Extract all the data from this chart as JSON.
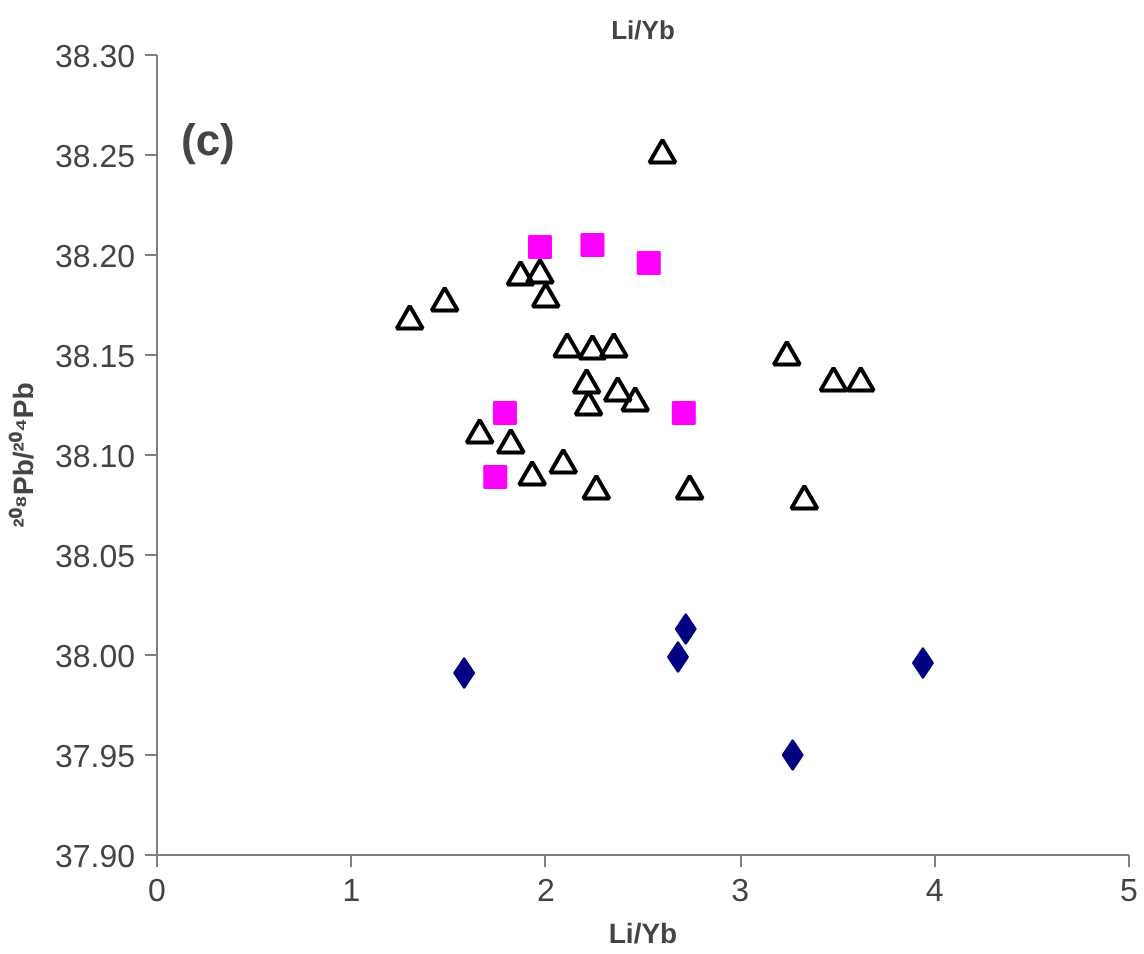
{
  "chart_data": {
    "type": "scatter",
    "title": "Li/Yb",
    "xlabel": "Li/Yb",
    "ylabel": "²⁰⁸Pb/²⁰⁴Pb",
    "annotations": [
      "(c)"
    ],
    "xlim": [
      0,
      5
    ],
    "xticks": [
      0,
      1,
      2,
      3,
      4,
      5
    ],
    "ylim": [
      37.9,
      38.3
    ],
    "yticks": [
      {
        "value": 37.9,
        "label": "37.90"
      },
      {
        "value": 37.95,
        "label": "37.95"
      },
      {
        "value": 38.0,
        "label": "38.00"
      },
      {
        "value": 38.05,
        "label": "38.05"
      },
      {
        "value": 38.1,
        "label": "38.10"
      },
      {
        "value": 38.15,
        "label": "38.15"
      },
      {
        "value": 38.2,
        "label": "38.20"
      },
      {
        "value": 38.25,
        "label": "38.25"
      },
      {
        "value": 38.3,
        "label": "38.30"
      }
    ],
    "grid": false,
    "series": [
      {
        "color": "#000000",
        "marker": "triangle",
        "x": [
          1.3,
          1.48,
          1.87,
          1.97,
          2.0,
          2.11,
          2.24,
          2.35,
          2.21,
          2.37,
          2.46,
          2.22,
          2.6,
          3.24,
          3.48,
          3.62,
          1.66,
          1.82,
          1.93,
          2.09,
          2.26,
          2.74,
          3.33
        ],
        "values": [
          38.167,
          38.176,
          38.189,
          38.19,
          38.178,
          38.153,
          38.152,
          38.153,
          38.135,
          38.131,
          38.126,
          38.124,
          38.25,
          38.149,
          38.136,
          38.136,
          38.11,
          38.105,
          38.089,
          38.095,
          38.082,
          38.082,
          38.077
        ]
      },
      {
        "color": "#ff00ff",
        "marker": "square",
        "x": [
          1.97,
          2.24,
          2.53,
          1.79,
          2.71,
          1.74
        ],
        "values": [
          38.204,
          38.205,
          38.196,
          38.121,
          38.121,
          38.089
        ]
      },
      {
        "color": "#000080",
        "marker": "diamond",
        "x": [
          1.58,
          2.72,
          2.68,
          3.27,
          3.94
        ],
        "values": [
          37.991,
          38.013,
          37.999,
          37.95,
          37.996
        ]
      }
    ]
  }
}
